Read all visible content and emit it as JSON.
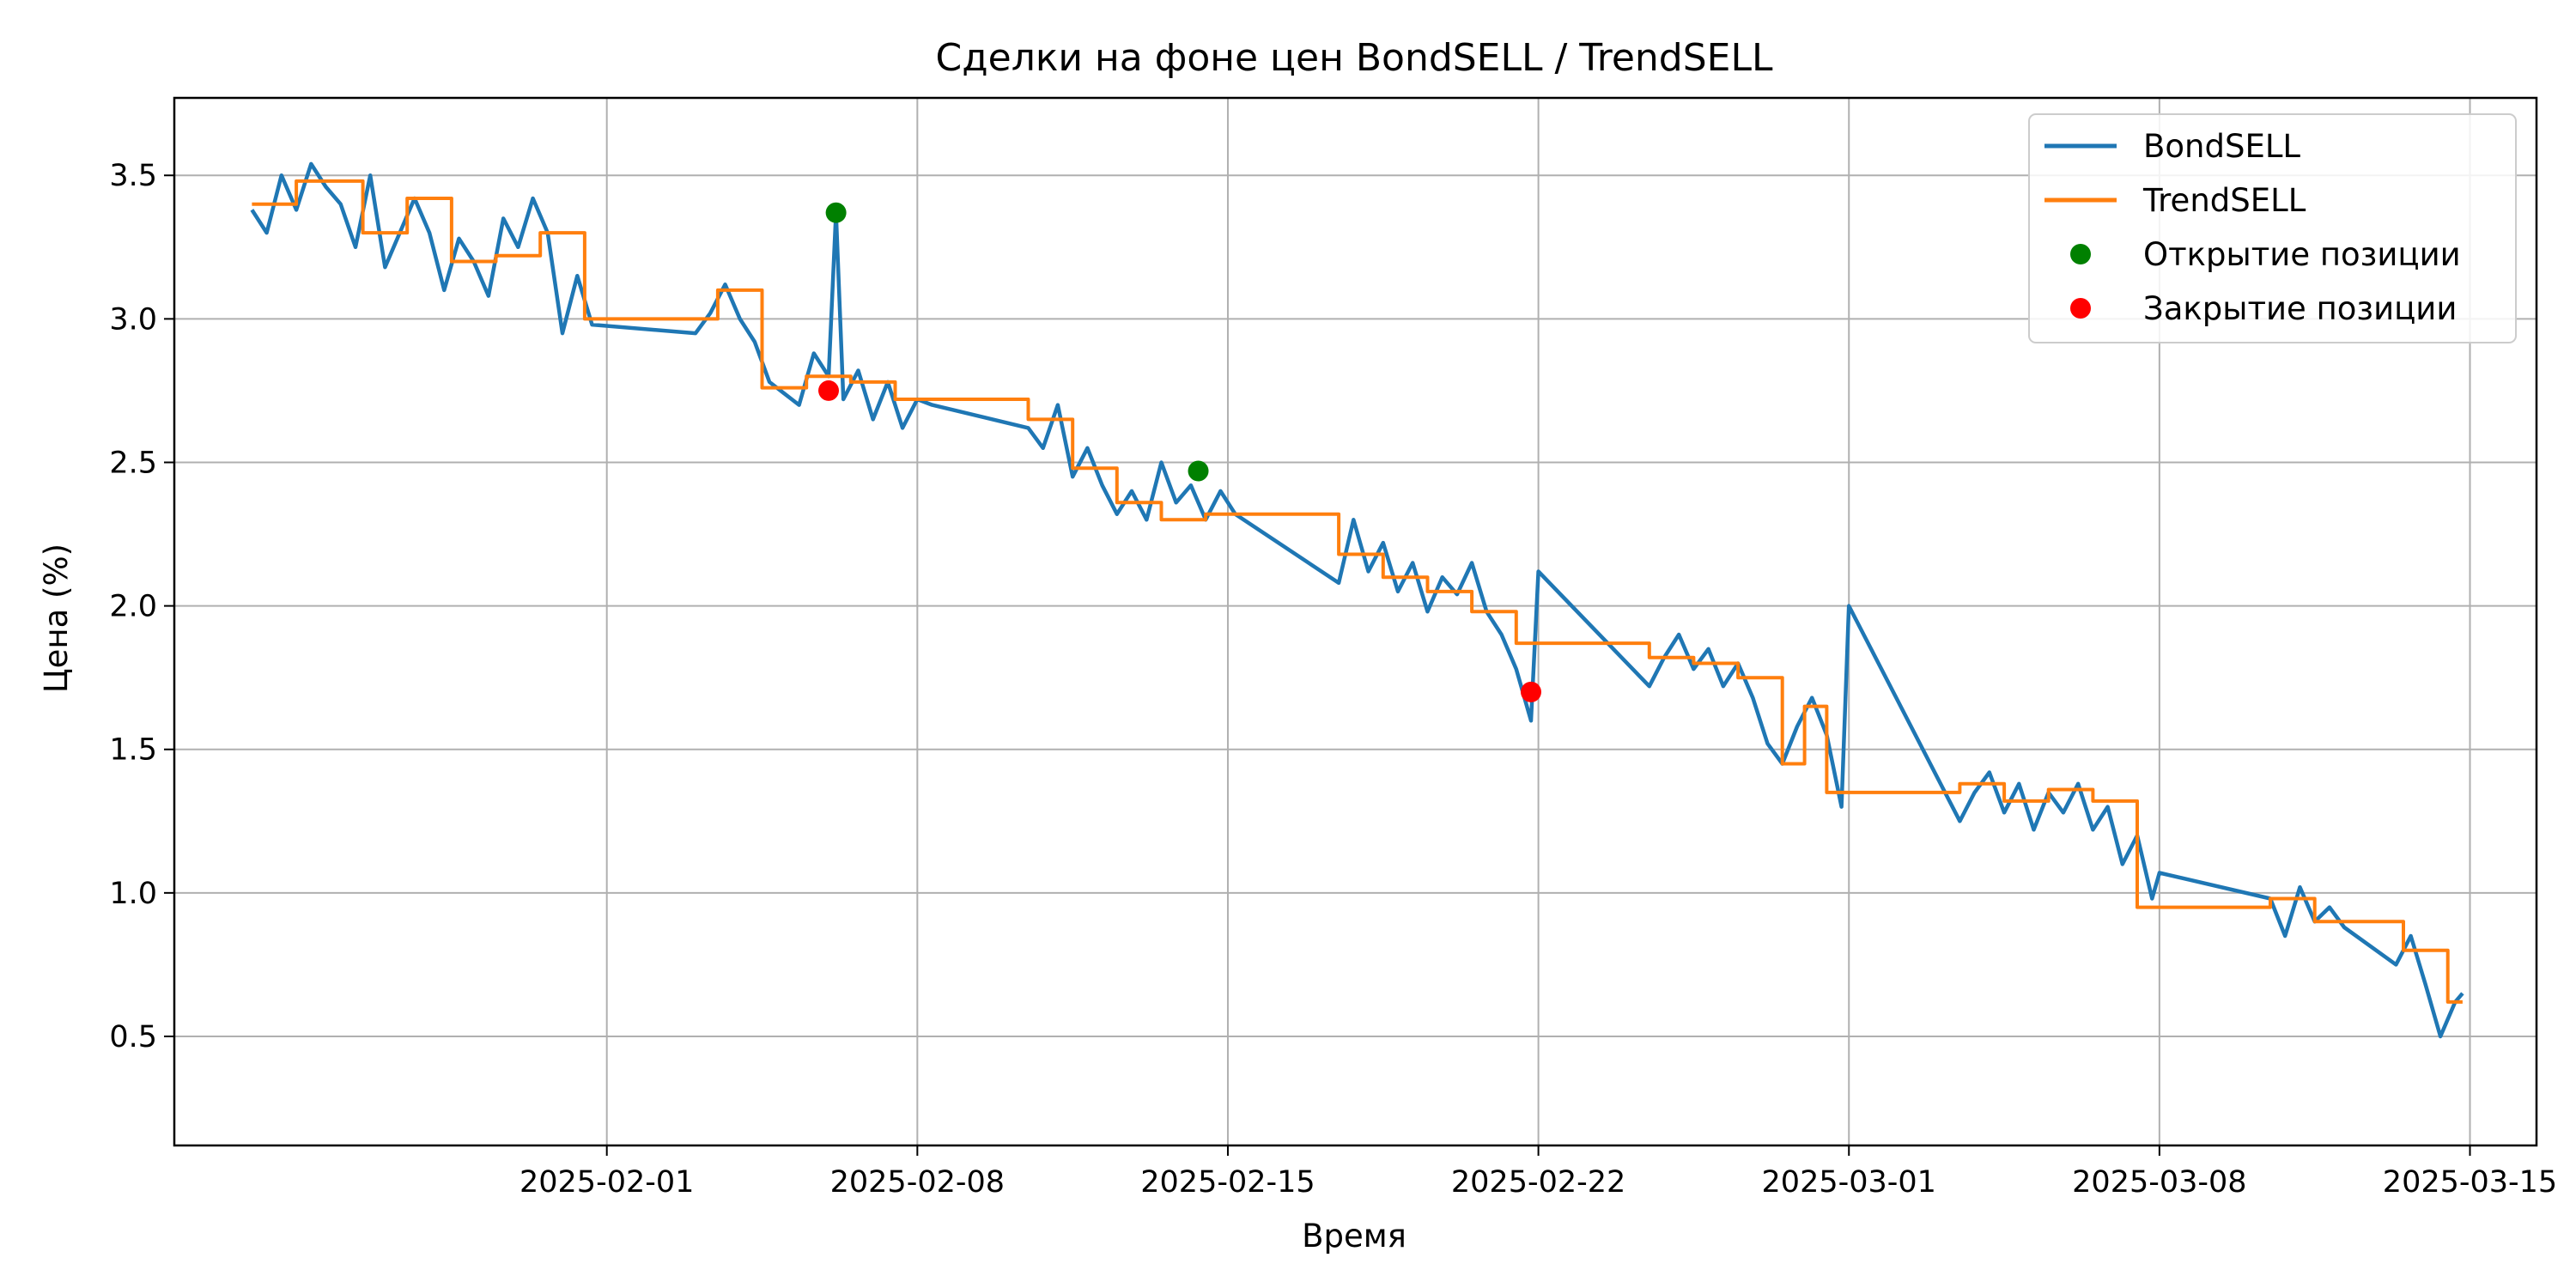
{
  "chart_data": {
    "type": "line",
    "title": "Сделки на фоне цен BondSELL / TrendSELL",
    "xlabel": "Время",
    "ylabel": "Цена (%)",
    "x_type": "date",
    "xlim": [
      "2025-01-22T06:00",
      "2025-03-16T12:00"
    ],
    "ylim": [
      0.12,
      3.77
    ],
    "x_ticks": [
      "2025-02-01",
      "2025-02-08",
      "2025-02-15",
      "2025-02-22",
      "2025-03-01",
      "2025-03-08",
      "2025-03-15"
    ],
    "y_ticks": [
      0.5,
      1.0,
      1.5,
      2.0,
      2.5,
      3.0,
      3.5
    ],
    "y_tick_labels": [
      "0.5",
      "1.0",
      "1.5",
      "2.0",
      "2.5",
      "3.0",
      "3.5"
    ],
    "grid": true,
    "legend_position": "top-right",
    "series": [
      {
        "name": "BondSELL",
        "color": "#1f77b4",
        "style": "line",
        "points": [
          [
            "2025-01-24T00:00",
            3.38
          ],
          [
            "2025-01-24T08:00",
            3.3
          ],
          [
            "2025-01-24T16:00",
            3.5
          ],
          [
            "2025-01-25T00:00",
            3.38
          ],
          [
            "2025-01-25T08:00",
            3.54
          ],
          [
            "2025-01-25T16:00",
            3.46
          ],
          [
            "2025-01-26T00:00",
            3.4
          ],
          [
            "2025-01-26T08:00",
            3.25
          ],
          [
            "2025-01-26T16:00",
            3.5
          ],
          [
            "2025-01-27T00:00",
            3.18
          ],
          [
            "2025-01-27T08:00",
            3.3
          ],
          [
            "2025-01-27T16:00",
            3.42
          ],
          [
            "2025-01-28T00:00",
            3.3
          ],
          [
            "2025-01-28T08:00",
            3.1
          ],
          [
            "2025-01-28T16:00",
            3.28
          ],
          [
            "2025-01-29T00:00",
            3.2
          ],
          [
            "2025-01-29T08:00",
            3.08
          ],
          [
            "2025-01-29T16:00",
            3.35
          ],
          [
            "2025-01-30T00:00",
            3.25
          ],
          [
            "2025-01-30T08:00",
            3.42
          ],
          [
            "2025-01-30T16:00",
            3.3
          ],
          [
            "2025-01-31T00:00",
            2.95
          ],
          [
            "2025-01-31T08:00",
            3.15
          ],
          [
            "2025-01-31T16:00",
            2.98
          ],
          [
            "2025-02-03T00:00",
            2.95
          ],
          [
            "2025-02-03T08:00",
            3.02
          ],
          [
            "2025-02-03T16:00",
            3.12
          ],
          [
            "2025-02-04T00:00",
            3.0
          ],
          [
            "2025-02-04T08:00",
            2.92
          ],
          [
            "2025-02-04T16:00",
            2.78
          ],
          [
            "2025-02-05T00:00",
            2.74
          ],
          [
            "2025-02-05T08:00",
            2.7
          ],
          [
            "2025-02-05T16:00",
            2.88
          ],
          [
            "2025-02-06T00:00",
            2.8
          ],
          [
            "2025-02-06T04:00",
            3.37
          ],
          [
            "2025-02-06T08:00",
            2.72
          ],
          [
            "2025-02-06T16:00",
            2.82
          ],
          [
            "2025-02-07T00:00",
            2.65
          ],
          [
            "2025-02-07T08:00",
            2.78
          ],
          [
            "2025-02-07T16:00",
            2.62
          ],
          [
            "2025-02-08T00:00",
            2.72
          ],
          [
            "2025-02-08T08:00",
            2.7
          ],
          [
            "2025-02-10T12:00",
            2.62
          ],
          [
            "2025-02-10T20:00",
            2.55
          ],
          [
            "2025-02-11T04:00",
            2.7
          ],
          [
            "2025-02-11T12:00",
            2.45
          ],
          [
            "2025-02-11T20:00",
            2.55
          ],
          [
            "2025-02-12T04:00",
            2.42
          ],
          [
            "2025-02-12T12:00",
            2.32
          ],
          [
            "2025-02-12T20:00",
            2.4
          ],
          [
            "2025-02-13T04:00",
            2.3
          ],
          [
            "2025-02-13T12:00",
            2.5
          ],
          [
            "2025-02-13T20:00",
            2.36
          ],
          [
            "2025-02-14T04:00",
            2.42
          ],
          [
            "2025-02-14T12:00",
            2.3
          ],
          [
            "2025-02-14T20:00",
            2.4
          ],
          [
            "2025-02-15T04:00",
            2.32
          ],
          [
            "2025-02-17T12:00",
            2.08
          ],
          [
            "2025-02-17T20:00",
            2.3
          ],
          [
            "2025-02-18T04:00",
            2.12
          ],
          [
            "2025-02-18T12:00",
            2.22
          ],
          [
            "2025-02-18T20:00",
            2.05
          ],
          [
            "2025-02-19T04:00",
            2.15
          ],
          [
            "2025-02-19T12:00",
            1.98
          ],
          [
            "2025-02-19T20:00",
            2.1
          ],
          [
            "2025-02-20T04:00",
            2.04
          ],
          [
            "2025-02-20T12:00",
            2.15
          ],
          [
            "2025-02-20T20:00",
            1.98
          ],
          [
            "2025-02-21T04:00",
            1.9
          ],
          [
            "2025-02-21T12:00",
            1.78
          ],
          [
            "2025-02-21T20:00",
            1.6
          ],
          [
            "2025-02-22T00:00",
            2.12
          ],
          [
            "2025-02-24T12:00",
            1.72
          ],
          [
            "2025-02-24T20:00",
            1.82
          ],
          [
            "2025-02-25T04:00",
            1.9
          ],
          [
            "2025-02-25T12:00",
            1.78
          ],
          [
            "2025-02-25T20:00",
            1.85
          ],
          [
            "2025-02-26T04:00",
            1.72
          ],
          [
            "2025-02-26T12:00",
            1.8
          ],
          [
            "2025-02-26T20:00",
            1.68
          ],
          [
            "2025-02-27T04:00",
            1.52
          ],
          [
            "2025-02-27T12:00",
            1.45
          ],
          [
            "2025-02-27T20:00",
            1.58
          ],
          [
            "2025-02-28T04:00",
            1.68
          ],
          [
            "2025-02-28T12:00",
            1.55
          ],
          [
            "2025-02-28T20:00",
            1.3
          ],
          [
            "2025-03-01T00:00",
            2.0
          ],
          [
            "2025-03-03T12:00",
            1.25
          ],
          [
            "2025-03-03T20:00",
            1.35
          ],
          [
            "2025-03-04T04:00",
            1.42
          ],
          [
            "2025-03-04T12:00",
            1.28
          ],
          [
            "2025-03-04T20:00",
            1.38
          ],
          [
            "2025-03-05T04:00",
            1.22
          ],
          [
            "2025-03-05T12:00",
            1.35
          ],
          [
            "2025-03-05T20:00",
            1.28
          ],
          [
            "2025-03-06T04:00",
            1.38
          ],
          [
            "2025-03-06T12:00",
            1.22
          ],
          [
            "2025-03-06T20:00",
            1.3
          ],
          [
            "2025-03-07T04:00",
            1.1
          ],
          [
            "2025-03-07T12:00",
            1.2
          ],
          [
            "2025-03-07T20:00",
            0.98
          ],
          [
            "2025-03-08T00:00",
            1.07
          ],
          [
            "2025-03-10T12:00",
            0.98
          ],
          [
            "2025-03-10T20:00",
            0.85
          ],
          [
            "2025-03-11T04:00",
            1.02
          ],
          [
            "2025-03-11T12:00",
            0.9
          ],
          [
            "2025-03-11T20:00",
            0.95
          ],
          [
            "2025-03-12T04:00",
            0.88
          ],
          [
            "2025-03-13T08:00",
            0.75
          ],
          [
            "2025-03-13T16:00",
            0.85
          ],
          [
            "2025-03-14T00:00",
            0.68
          ],
          [
            "2025-03-14T08:00",
            0.5
          ],
          [
            "2025-03-14T16:00",
            0.62
          ],
          [
            "2025-03-14T20:00",
            0.65
          ]
        ]
      },
      {
        "name": "TrendSELL",
        "color": "#ff7f0e",
        "style": "step",
        "points": [
          [
            "2025-01-24T00:00",
            3.4
          ],
          [
            "2025-01-25T00:00",
            3.48
          ],
          [
            "2025-01-26T12:00",
            3.3
          ],
          [
            "2025-01-27T12:00",
            3.42
          ],
          [
            "2025-01-28T12:00",
            3.2
          ],
          [
            "2025-01-29T12:00",
            3.22
          ],
          [
            "2025-01-30T12:00",
            3.3
          ],
          [
            "2025-01-31T12:00",
            3.0
          ],
          [
            "2025-02-03T12:00",
            3.1
          ],
          [
            "2025-02-04T12:00",
            2.76
          ],
          [
            "2025-02-05T12:00",
            2.8
          ],
          [
            "2025-02-06T12:00",
            2.78
          ],
          [
            "2025-02-07T12:00",
            2.72
          ],
          [
            "2025-02-10T12:00",
            2.65
          ],
          [
            "2025-02-11T12:00",
            2.48
          ],
          [
            "2025-02-12T12:00",
            2.36
          ],
          [
            "2025-02-13T12:00",
            2.3
          ],
          [
            "2025-02-14T12:00",
            2.32
          ],
          [
            "2025-02-17T12:00",
            2.18
          ],
          [
            "2025-02-18T12:00",
            2.1
          ],
          [
            "2025-02-19T12:00",
            2.05
          ],
          [
            "2025-02-20T12:00",
            1.98
          ],
          [
            "2025-02-21T12:00",
            1.87
          ],
          [
            "2025-02-24T12:00",
            1.82
          ],
          [
            "2025-02-25T12:00",
            1.8
          ],
          [
            "2025-02-26T12:00",
            1.75
          ],
          [
            "2025-02-27T12:00",
            1.45
          ],
          [
            "2025-02-28T00:00",
            1.65
          ],
          [
            "2025-02-28T12:00",
            1.35
          ],
          [
            "2025-03-03T12:00",
            1.38
          ],
          [
            "2025-03-04T12:00",
            1.32
          ],
          [
            "2025-03-05T12:00",
            1.36
          ],
          [
            "2025-03-06T12:00",
            1.32
          ],
          [
            "2025-03-07T12:00",
            0.95
          ],
          [
            "2025-03-10T12:00",
            0.98
          ],
          [
            "2025-03-11T12:00",
            0.9
          ],
          [
            "2025-03-13T12:00",
            0.8
          ],
          [
            "2025-03-14T12:00",
            0.62
          ],
          [
            "2025-03-14T20:00",
            0.62
          ]
        ]
      },
      {
        "name": "Открытие позиции",
        "color": "#008000",
        "style": "scatter",
        "points": [
          [
            "2025-02-06T04:00",
            3.37
          ],
          [
            "2025-02-14T08:00",
            2.47
          ]
        ]
      },
      {
        "name": "Закрытие позиции",
        "color": "#ff0000",
        "style": "scatter",
        "points": [
          [
            "2025-02-06T00:00",
            2.75
          ],
          [
            "2025-02-21T20:00",
            1.7
          ]
        ]
      }
    ]
  }
}
